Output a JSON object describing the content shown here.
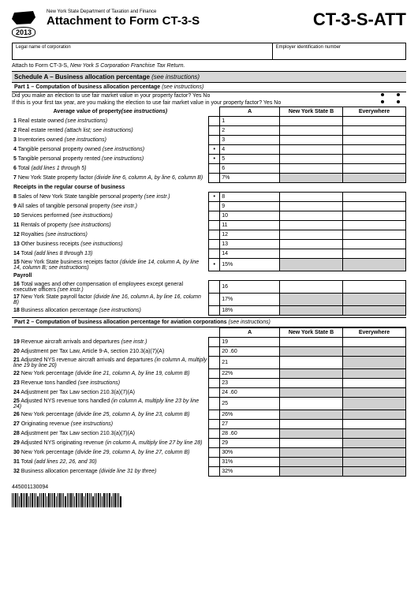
{
  "header": {
    "dept": "New York State Department of Taxation and Finance",
    "title": "Attachment to Form CT-3-S",
    "code": "CT-3-S-ATT",
    "year": "2013"
  },
  "top": {
    "legal": "Legal name of corporation",
    "ein": "Employer identification number"
  },
  "attach": "Attach to Form CT-3-S, ",
  "attach_i": "New York S Corporation Franchise Tax Return.",
  "schedA": "Schedule A – Business allocation percentage ",
  "schedA_i": "(see instructions)",
  "part1": "Part 1 – Computation of business allocation percentage ",
  "part1_i": "(see instructions)",
  "q1": "Did you make an election to use fair market value in your property factor?  Yes No",
  "q2": "If this is your first tax year, are you making the election to use fair market value in your property factor?  Yes No",
  "colA": "A",
  "colB": "New York State B",
  "colC": "Everywhere",
  "avg": "Average value of property",
  "avg_i": "(see instructions)",
  "r": [
    {
      "n": "1",
      "t": "Real estate owned ",
      "i": "(see instructions)",
      "e": "1"
    },
    {
      "n": "2",
      "t": "Real estate rented ",
      "i": "(attach list; see instructions)",
      "e": "2"
    },
    {
      "n": "3",
      "t": "Inventories owned ",
      "i": "(see instructions)",
      "e": "3"
    },
    {
      "n": "4",
      "t": "Tangible personal property owned ",
      "i": "(see instructions)",
      "e": "4",
      "dot": "."
    },
    {
      "n": "5",
      "t": "Tangible personal property rented ",
      "i": "(see instructions)",
      "e": "5",
      "dot": "."
    },
    {
      "n": "6",
      "t": "Total ",
      "i": "(add lines 1 through 5)",
      "e": "6"
    },
    {
      "n": "7",
      "t": "New York State property factor ",
      "i": "(divide line 6, column A, by line 6, column B)",
      "e": "7",
      "pct": "%"
    }
  ],
  "receipts": "Receipts in the regular course of business",
  "r2": [
    {
      "n": "8",
      "t": "Sales of New York State tangible personal property ",
      "i": "(see instr.)",
      "e": "8",
      "dot": "."
    },
    {
      "n": "9",
      "t": "All sales of tangible personal property ",
      "i": "(see instr.)",
      "e": "9"
    },
    {
      "n": "10",
      "t": "Services performed ",
      "i": "(see instructions)",
      "e": "10"
    },
    {
      "n": "11",
      "t": "Rentals of property ",
      "i": "(see instructions)",
      "e": "11"
    },
    {
      "n": "12",
      "t": "Royalties ",
      "i": "(see instructions)",
      "e": "12"
    },
    {
      "n": "13",
      "t": "Other business receipts ",
      "i": "(see instructions)",
      "e": "13"
    },
    {
      "n": "14",
      "t": "Total ",
      "i": "(add lines 8 through 13)",
      "e": "14"
    },
    {
      "n": "15",
      "t": "New York State business receipts factor ",
      "i": "(divide line 14, column A, by line 14, column B; see instructions)",
      "e": "15",
      "pct": "%",
      "dot": "."
    }
  ],
  "payroll": "Payroll",
  "r3": [
    {
      "n": "16",
      "t": "Total wages and other compensation of employees except general executive officers ",
      "i": "(see instr.)",
      "e": "16"
    },
    {
      "n": "17",
      "t": "New York State payroll factor ",
      "i": "(divide line 16, column A, by line 16, column B)",
      "e": "17",
      "pct": "%"
    },
    {
      "n": "18",
      "t": "Business allocation percentage ",
      "i": "(see instructions)",
      "e": "18",
      "pct": "%"
    }
  ],
  "part2": "Part 2 – Computation of business allocation percentage for aviation corporations ",
  "part2_i": "(see instructions)",
  "r4": [
    {
      "n": "19",
      "t": "Revenue aircraft arrivals and departures ",
      "i": "(see instr.)",
      "e": "19"
    },
    {
      "n": "20",
      "t": "Adjustment per Tax Law, Article 9-A, section 210.3(a)(7)(A)",
      "e": "20",
      "v": ".60"
    },
    {
      "n": "21",
      "t": "Adjusted NYS revenue aircraft arrivals and departures ",
      "i": "(in column A, multiply line 19 by line 20)",
      "e": "21"
    },
    {
      "n": "22",
      "t": "New York percentage ",
      "i": "(divide line 21, column A, by line 19, column B)",
      "e": "22",
      "pct": "%"
    },
    {
      "n": "23",
      "t": "Revenue tons handled ",
      "i": "(see instructions)",
      "e": "23"
    },
    {
      "n": "24",
      "t": "Adjustment per Tax Law section 210.3(a)(7)(A)",
      "e": "24",
      "v": ".60"
    },
    {
      "n": "25",
      "t": "Adjusted NYS revenue tons handled ",
      "i": "(in column A, multiply line 23 by line 24)",
      "e": "25"
    },
    {
      "n": "26",
      "t": "New York percentage ",
      "i": "(divide line 25, column A, by line 23, column B)",
      "e": "26",
      "pct": "%"
    },
    {
      "n": "27",
      "t": "Originating revenue ",
      "i": "(see instructions)",
      "e": "27"
    },
    {
      "n": "28",
      "t": "Adjustment per Tax Law section 210.3(a)(7)(A)",
      "e": "28",
      "v": ".60"
    },
    {
      "n": "29",
      "t": "Adjusted NYS originating revenue ",
      "i": "(in column A, multiply line 27 by line 28)",
      "e": "29"
    },
    {
      "n": "30",
      "t": "New York percentage ",
      "i": "(divide line 29, column A, by line 27, column B)",
      "e": "30",
      "pct": "%"
    },
    {
      "n": "31",
      "t": "Total ",
      "i": "(add lines 22, 26, and 30)",
      "e": "31",
      "pct": "%"
    },
    {
      "n": "32",
      "t": "Business allocation percentage ",
      "i": "(divide line 31 by three)",
      "e": "32",
      "pct": "%"
    }
  ],
  "barcode": "445001130094",
  "shadeB": [
    "7",
    "15",
    "17",
    "18",
    "20",
    "22",
    "24",
    "26",
    "28",
    "30",
    "31",
    "32"
  ],
  "shadeC": [
    "7",
    "15",
    "17",
    "18",
    "20",
    "21",
    "22",
    "24",
    "25",
    "26",
    "28",
    "29",
    "30",
    "31",
    "32"
  ]
}
